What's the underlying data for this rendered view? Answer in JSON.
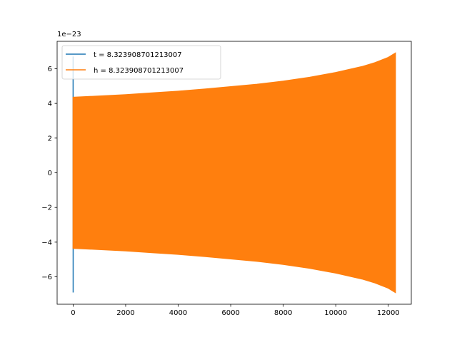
{
  "chart_data": {
    "type": "line",
    "xlim": [
      -609.0,
      12876.0
    ],
    "ylim": [
      -7.58e-23,
      7.58e-23
    ],
    "y_offset_label": "1e−23",
    "xticks": [
      0,
      2000,
      4000,
      6000,
      8000,
      10000,
      12000
    ],
    "xtick_labels": [
      "0",
      "2000",
      "4000",
      "6000",
      "8000",
      "10000",
      "12000"
    ],
    "yticks": [
      -6e-23,
      -4e-23,
      -2e-23,
      0,
      2e-23,
      4e-23,
      6e-23
    ],
    "ytick_labels": [
      "−6",
      "−4",
      "−2",
      "0",
      "2",
      "4",
      "6"
    ],
    "grid": false,
    "legend_position": "upper-left",
    "series": [
      {
        "name": "t = 8.323908701213007",
        "color": "#1f77b4",
        "points": [
          [
            0,
            0
          ],
          [
            0,
            6.7e-23
          ],
          [
            2,
            -6.9e-23
          ],
          [
            4,
            4.3e-23
          ],
          [
            6,
            -4.3e-23
          ],
          [
            8,
            4.3e-23
          ],
          [
            12,
            -4.3e-23
          ],
          [
            0,
            -1.4e-23
          ]
        ]
      },
      {
        "name": "h = 8.323908701213007",
        "color": "#ff7f0e",
        "style": "dense-oscillation",
        "envelope": {
          "x": [
            0,
            1000,
            2000,
            3000,
            4000,
            5000,
            6000,
            7000,
            8000,
            9000,
            10000,
            11000,
            11500,
            12000,
            12270
          ],
          "upper": [
            4.35e-23,
            4.42e-23,
            4.5e-23,
            4.6e-23,
            4.7e-23,
            4.82e-23,
            4.96e-23,
            5.1e-23,
            5.28e-23,
            5.5e-23,
            5.78e-23,
            6.12e-23,
            6.35e-23,
            6.65e-23,
            6.9e-23
          ],
          "lower": [
            -4.35e-23,
            -4.42e-23,
            -4.5e-23,
            -4.6e-23,
            -4.7e-23,
            -4.82e-23,
            -4.96e-23,
            -5.1e-23,
            -5.28e-23,
            -5.5e-23,
            -5.78e-23,
            -6.12e-23,
            -6.35e-23,
            -6.65e-23,
            -6.9e-23
          ]
        }
      }
    ]
  }
}
